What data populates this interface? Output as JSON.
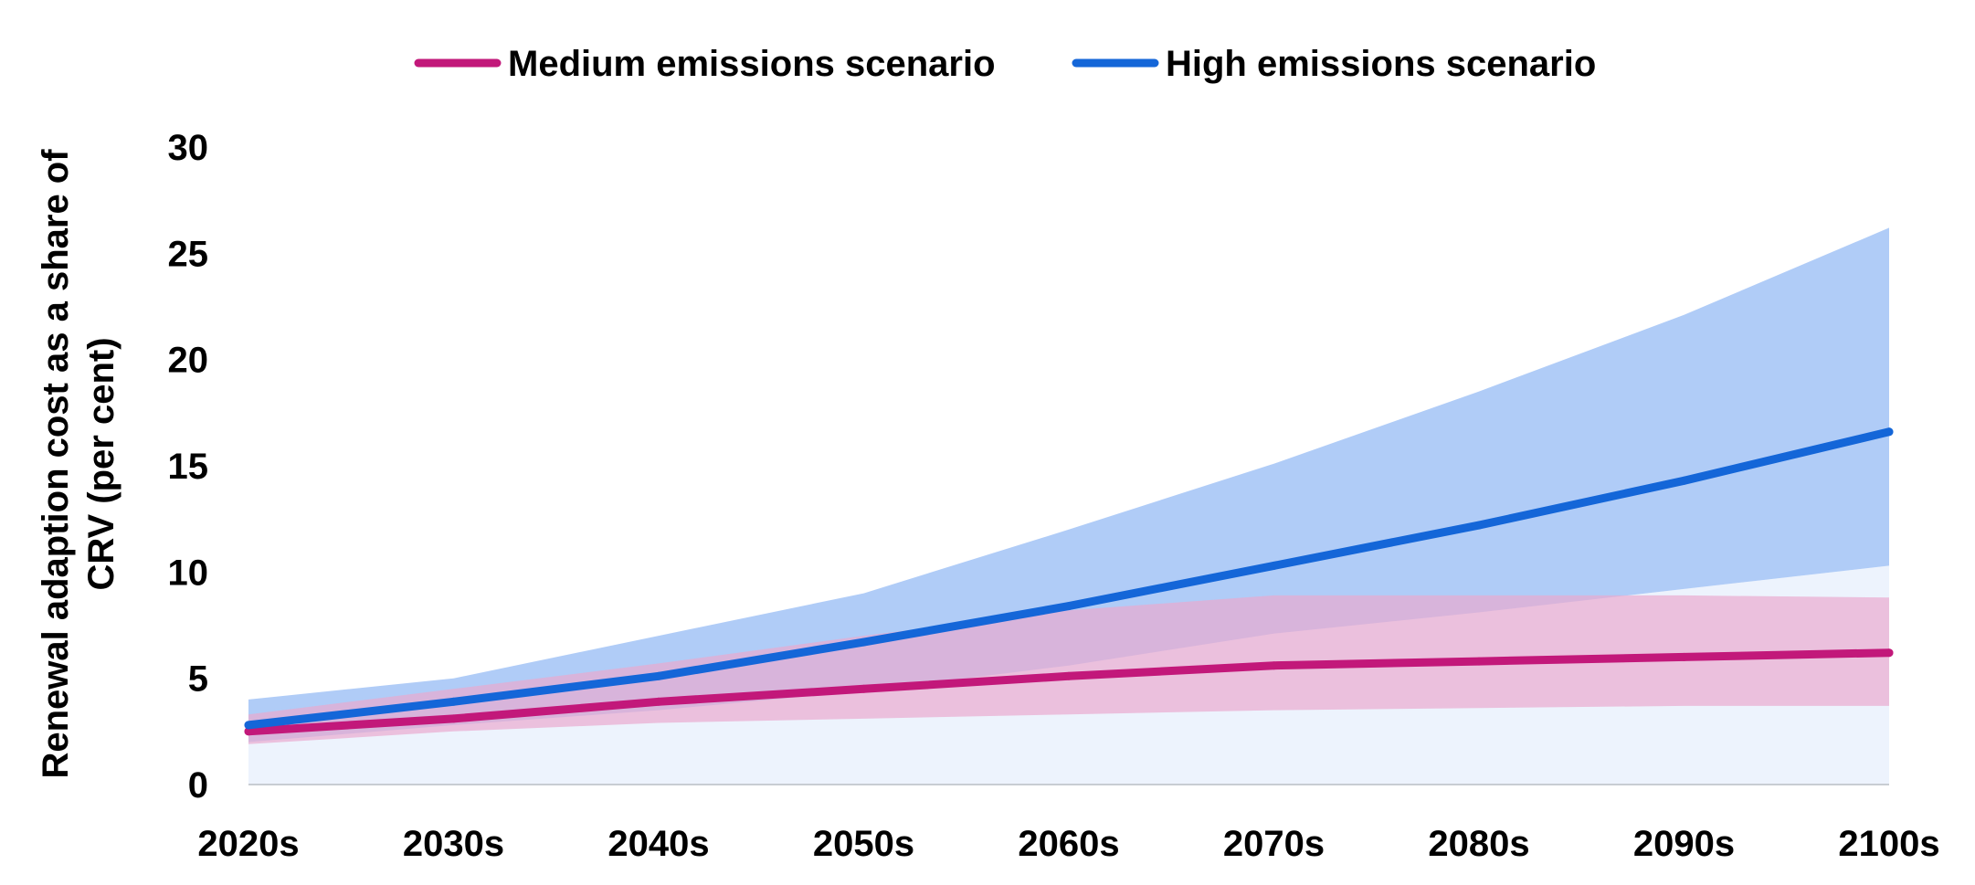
{
  "chart_data": {
    "type": "line",
    "title": "",
    "xlabel": "",
    "ylabel_lines": [
      "Renewal adaption cost as a share of",
      "CRV (per cent)"
    ],
    "categories": [
      "2020s",
      "2030s",
      "2040s",
      "2050s",
      "2060s",
      "2070s",
      "2080s",
      "2090s",
      "2100s"
    ],
    "ylim": [
      0,
      30
    ],
    "yticks": [
      0,
      5,
      10,
      15,
      20,
      25,
      30
    ],
    "grid": false,
    "legend_position": "top",
    "series": [
      {
        "name": "Medium emissions scenario",
        "color": "#c2187a",
        "band_color": "#eaa9cf",
        "values": [
          2.5,
          3.1,
          3.9,
          4.5,
          5.1,
          5.6,
          5.8,
          6.0,
          6.2
        ],
        "upper": [
          3.3,
          4.5,
          5.7,
          7.0,
          8.2,
          8.9,
          8.9,
          8.9,
          8.8
        ],
        "lower": [
          1.9,
          2.5,
          2.9,
          3.1,
          3.3,
          3.5,
          3.6,
          3.7,
          3.7
        ]
      },
      {
        "name": "High emissions scenario",
        "color": "#1466d8",
        "band_color": "#b0ccf7",
        "values": [
          2.8,
          3.9,
          5.1,
          6.7,
          8.4,
          10.3,
          12.2,
          14.3,
          16.6
        ],
        "upper": [
          4.0,
          5.0,
          7.0,
          9.0,
          12.0,
          15.1,
          18.5,
          22.1,
          26.2
        ],
        "lower": [
          2.0,
          2.8,
          3.5,
          4.4,
          5.6,
          7.1,
          8.1,
          9.2,
          10.3
        ]
      }
    ],
    "background_band_color": "#edf3fd"
  }
}
